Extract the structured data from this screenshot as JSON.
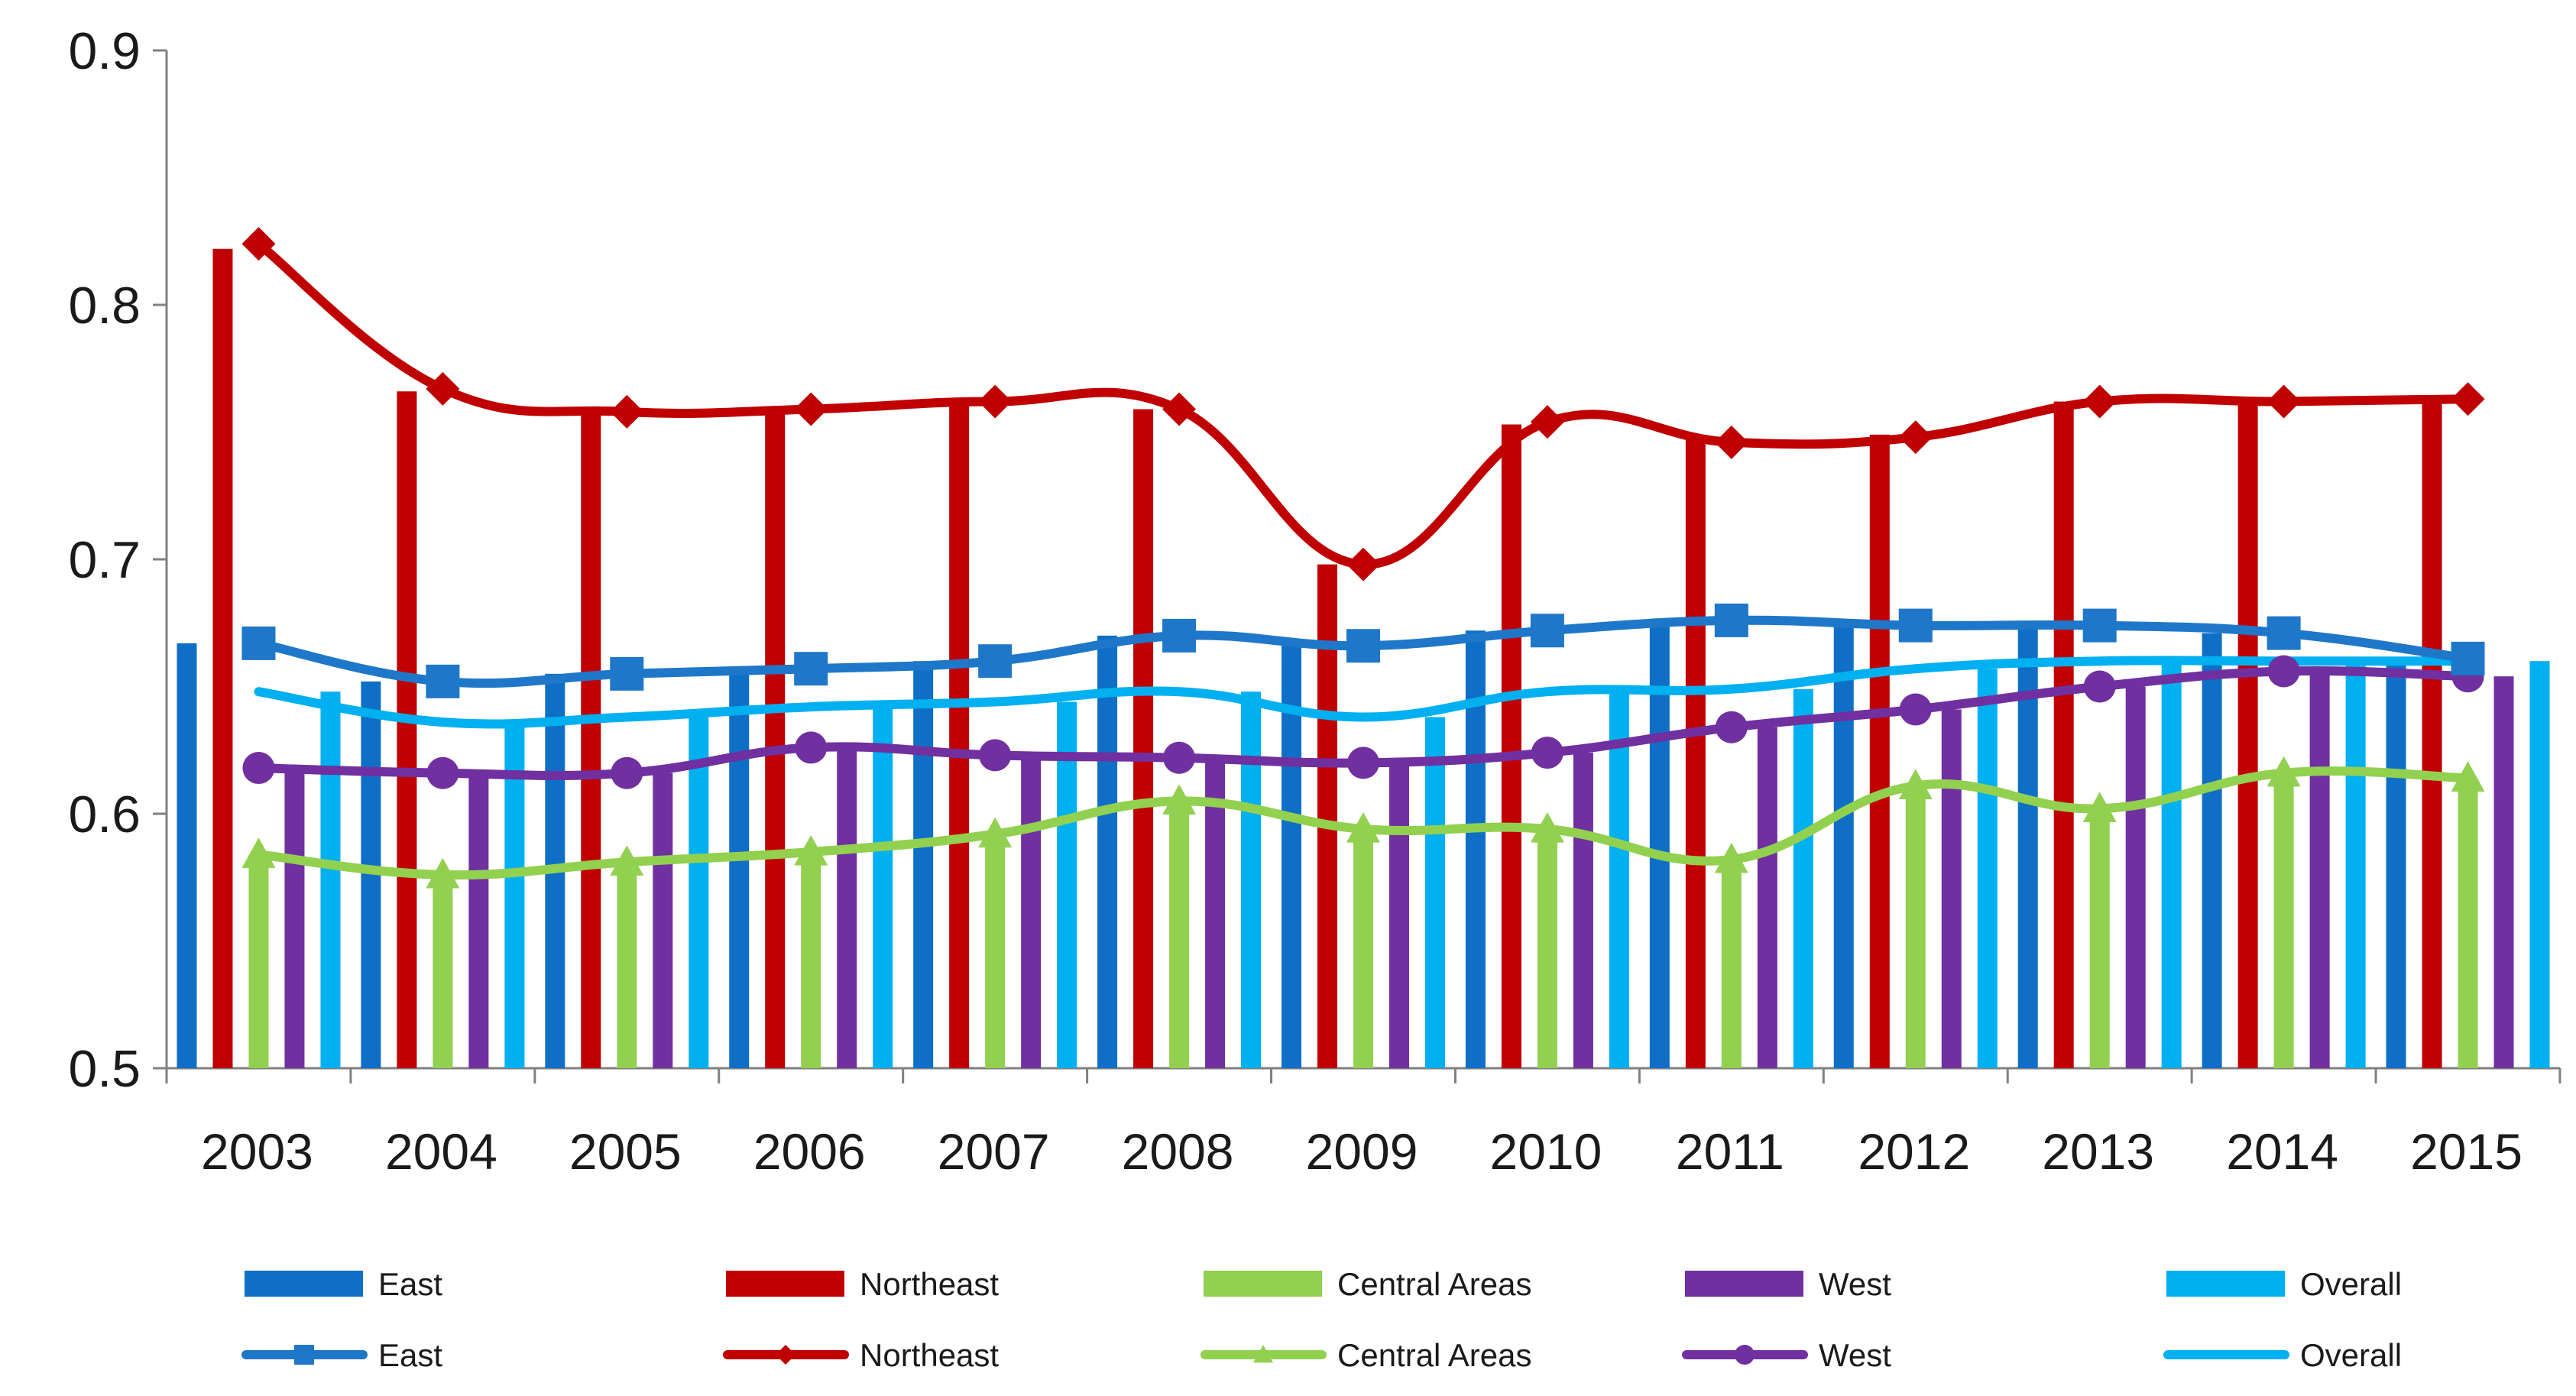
{
  "chart_data": {
    "type": "bar+line",
    "title": "",
    "xlabel": "",
    "ylabel": "",
    "ylim": [
      0.5,
      0.9
    ],
    "yticks": [
      "0.5",
      "0.6",
      "0.7",
      "0.8",
      "0.9"
    ],
    "categories": [
      "2003",
      "2004",
      "2005",
      "2006",
      "2007",
      "2008",
      "2009",
      "2010",
      "2011",
      "2012",
      "2013",
      "2014",
      "2015"
    ],
    "bar_series": [
      {
        "name": "East",
        "color": "#0F6FC6",
        "values": [
          0.667,
          0.652,
          0.655,
          0.657,
          0.66,
          0.67,
          0.666,
          0.672,
          0.676,
          0.674,
          0.674,
          0.671,
          0.661
        ]
      },
      {
        "name": "Northeast",
        "color": "#C00000",
        "values": [
          0.822,
          0.766,
          0.758,
          0.76,
          0.762,
          0.759,
          0.698,
          0.753,
          0.747,
          0.749,
          0.762,
          0.762,
          0.763
        ]
      },
      {
        "name": "Central Areas",
        "color": "#92D050",
        "values": [
          0.584,
          0.576,
          0.581,
          0.585,
          0.592,
          0.605,
          0.594,
          0.594,
          0.582,
          0.611,
          0.602,
          0.616,
          0.614
        ]
      },
      {
        "name": "West",
        "color": "#7030A0",
        "values": [
          0.618,
          0.616,
          0.616,
          0.626,
          0.623,
          0.622,
          0.62,
          0.624,
          0.634,
          0.641,
          0.65,
          0.656,
          0.654
        ]
      },
      {
        "name": "Overall",
        "color": "#00B0F0",
        "values": [
          0.648,
          0.636,
          0.638,
          0.642,
          0.644,
          0.648,
          0.638,
          0.648,
          0.649,
          0.657,
          0.66,
          0.66,
          0.66
        ]
      }
    ],
    "line_series": [
      {
        "name": "East",
        "color": "#1F77C9",
        "marker": "square",
        "values": [
          0.667,
          0.652,
          0.655,
          0.657,
          0.66,
          0.67,
          0.666,
          0.672,
          0.676,
          0.674,
          0.674,
          0.671,
          0.661
        ]
      },
      {
        "name": "Northeast",
        "color": "#C00000",
        "marker": "diamond",
        "values": [
          0.824,
          0.767,
          0.758,
          0.759,
          0.762,
          0.759,
          0.698,
          0.754,
          0.746,
          0.748,
          0.762,
          0.762,
          0.763
        ]
      },
      {
        "name": "Central Areas",
        "color": "#92D050",
        "marker": "triangle",
        "values": [
          0.584,
          0.576,
          0.581,
          0.585,
          0.592,
          0.605,
          0.594,
          0.594,
          0.582,
          0.611,
          0.602,
          0.616,
          0.614
        ]
      },
      {
        "name": "West",
        "color": "#7030A0",
        "marker": "circle",
        "values": [
          0.618,
          0.616,
          0.616,
          0.626,
          0.623,
          0.622,
          0.62,
          0.624,
          0.634,
          0.641,
          0.65,
          0.656,
          0.654
        ]
      },
      {
        "name": "Overall",
        "color": "#00B0F0",
        "marker": "none",
        "values": [
          0.648,
          0.636,
          0.638,
          0.642,
          0.644,
          0.648,
          0.638,
          0.648,
          0.649,
          0.657,
          0.66,
          0.66,
          0.66
        ]
      }
    ],
    "legend": {
      "placement": "bottom",
      "bar_labels": [
        "East",
        "Northeast",
        "Central Areas",
        "West",
        "Overall"
      ],
      "line_labels": [
        "East",
        "Northeast",
        "Central Areas",
        "West",
        "Overall"
      ]
    },
    "grid": false
  }
}
